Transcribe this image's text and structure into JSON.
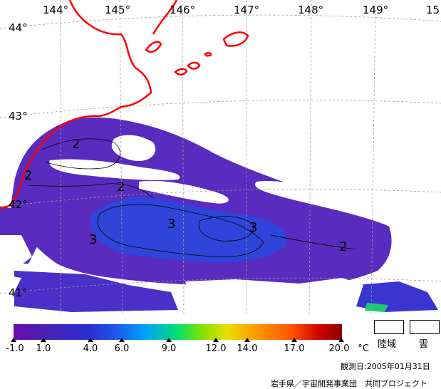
{
  "map": {
    "longitude_labels": [
      "144°",
      "145°",
      "146°",
      "147°",
      "148°",
      "149°",
      "15"
    ],
    "latitude_labels": [
      "44°",
      "43°",
      "42°",
      "41°"
    ],
    "contour_labels": [
      "2",
      "2",
      "2",
      "3",
      "3",
      "3",
      "2"
    ],
    "colors": {
      "coastline": "#ff0000",
      "cold_water": "#5a2bbf",
      "cool_water": "#2f44d8",
      "cloud": "#ffffff",
      "grid": "#9a9a9a"
    }
  },
  "colorbar": {
    "ticks": [
      "-1.0",
      "1.0",
      "4.0",
      "6.0",
      "9.0",
      "12.0",
      "14.0",
      "17.0",
      "20.0"
    ],
    "unit": "°C"
  },
  "legend": {
    "land_label": "陸域",
    "cloud_label": "雲"
  },
  "footer": {
    "observation_date": "観測日:2005年01月31日",
    "credit": "岩手県／宇宙開発事業団　共同プロジェクト"
  }
}
